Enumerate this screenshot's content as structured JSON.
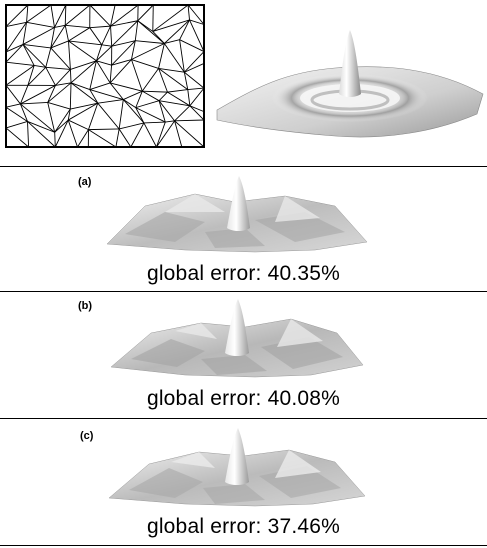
{
  "figure": {
    "panels": [
      {
        "tag": "(a)",
        "caption": "global error: 40.35%"
      },
      {
        "tag": "(b)",
        "caption": "global error: 40.08%"
      },
      {
        "tag": "(c)",
        "caption": "global error: 37.46%"
      }
    ]
  }
}
